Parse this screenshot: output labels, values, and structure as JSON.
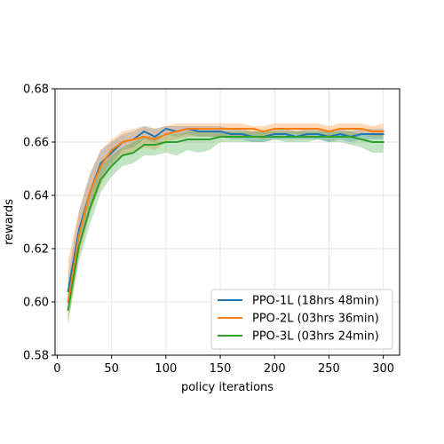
{
  "chart_data": {
    "type": "line",
    "title": "",
    "xlabel": "policy iterations",
    "ylabel": "rewards",
    "xlim": [
      -2,
      315
    ],
    "ylim": [
      0.58,
      0.68
    ],
    "xticks": [
      0,
      50,
      100,
      150,
      200,
      250,
      300
    ],
    "xtick_labels": [
      "0",
      "50",
      "100",
      "150",
      "200",
      "250",
      "300"
    ],
    "yticks": [
      0.58,
      0.6,
      0.62,
      0.64,
      0.66,
      0.68
    ],
    "ytick_labels": [
      "0.58",
      "0.60",
      "0.62",
      "0.64",
      "0.66",
      "0.68"
    ],
    "grid": true,
    "legend_position": "lower-right",
    "x": [
      10,
      20,
      30,
      40,
      50,
      60,
      70,
      80,
      90,
      100,
      110,
      120,
      130,
      140,
      150,
      160,
      170,
      180,
      190,
      200,
      210,
      220,
      230,
      240,
      250,
      260,
      270,
      280,
      290,
      300
    ],
    "series": [
      {
        "name": "PPO-1L (18hrs 48min)",
        "color": "#1f77b4",
        "values": [
          0.604,
          0.627,
          0.641,
          0.652,
          0.656,
          0.66,
          0.661,
          0.664,
          0.662,
          0.665,
          0.664,
          0.665,
          0.664,
          0.664,
          0.664,
          0.663,
          0.663,
          0.662,
          0.662,
          0.663,
          0.663,
          0.662,
          0.663,
          0.663,
          0.662,
          0.663,
          0.662,
          0.663,
          0.663,
          0.663
        ],
        "lower": [
          0.598,
          0.62,
          0.634,
          0.647,
          0.652,
          0.657,
          0.658,
          0.661,
          0.66,
          0.663,
          0.662,
          0.663,
          0.662,
          0.662,
          0.662,
          0.661,
          0.661,
          0.66,
          0.66,
          0.661,
          0.661,
          0.661,
          0.661,
          0.661,
          0.66,
          0.661,
          0.66,
          0.661,
          0.661,
          0.661
        ],
        "upper": [
          0.61,
          0.634,
          0.648,
          0.657,
          0.66,
          0.663,
          0.664,
          0.666,
          0.665,
          0.666,
          0.666,
          0.666,
          0.666,
          0.666,
          0.666,
          0.665,
          0.665,
          0.664,
          0.664,
          0.665,
          0.665,
          0.664,
          0.665,
          0.665,
          0.664,
          0.665,
          0.664,
          0.665,
          0.665,
          0.665
        ]
      },
      {
        "name": "PPO-2L (03hrs 36min)",
        "color": "#ff7f0e",
        "values": [
          0.6,
          0.625,
          0.641,
          0.651,
          0.657,
          0.66,
          0.661,
          0.662,
          0.661,
          0.663,
          0.664,
          0.665,
          0.665,
          0.665,
          0.665,
          0.665,
          0.665,
          0.665,
          0.664,
          0.665,
          0.665,
          0.665,
          0.665,
          0.665,
          0.664,
          0.665,
          0.665,
          0.665,
          0.664,
          0.664
        ],
        "lower": [
          0.592,
          0.617,
          0.633,
          0.644,
          0.651,
          0.655,
          0.656,
          0.658,
          0.657,
          0.66,
          0.661,
          0.662,
          0.662,
          0.662,
          0.662,
          0.662,
          0.662,
          0.662,
          0.661,
          0.663,
          0.663,
          0.663,
          0.662,
          0.663,
          0.662,
          0.663,
          0.662,
          0.663,
          0.662,
          0.662
        ],
        "upper": [
          0.616,
          0.634,
          0.648,
          0.657,
          0.661,
          0.664,
          0.665,
          0.666,
          0.665,
          0.666,
          0.667,
          0.667,
          0.667,
          0.667,
          0.667,
          0.667,
          0.667,
          0.666,
          0.666,
          0.667,
          0.667,
          0.667,
          0.667,
          0.667,
          0.666,
          0.667,
          0.667,
          0.667,
          0.666,
          0.667
        ]
      },
      {
        "name": "PPO-3L (03hrs 24min)",
        "color": "#2ca02c",
        "values": [
          0.597,
          0.621,
          0.635,
          0.646,
          0.651,
          0.655,
          0.656,
          0.659,
          0.659,
          0.66,
          0.66,
          0.661,
          0.661,
          0.661,
          0.662,
          0.662,
          0.662,
          0.662,
          0.662,
          0.662,
          0.662,
          0.662,
          0.662,
          0.662,
          0.662,
          0.662,
          0.662,
          0.661,
          0.66,
          0.66
        ],
        "lower": [
          0.592,
          0.615,
          0.629,
          0.641,
          0.647,
          0.651,
          0.652,
          0.655,
          0.655,
          0.656,
          0.655,
          0.657,
          0.656,
          0.657,
          0.66,
          0.66,
          0.66,
          0.66,
          0.66,
          0.661,
          0.66,
          0.66,
          0.66,
          0.661,
          0.66,
          0.66,
          0.659,
          0.658,
          0.656,
          0.656
        ],
        "upper": [
          0.603,
          0.627,
          0.641,
          0.651,
          0.655,
          0.658,
          0.66,
          0.662,
          0.662,
          0.663,
          0.663,
          0.664,
          0.664,
          0.664,
          0.664,
          0.664,
          0.664,
          0.664,
          0.664,
          0.664,
          0.664,
          0.664,
          0.664,
          0.664,
          0.664,
          0.664,
          0.664,
          0.663,
          0.663,
          0.663
        ]
      }
    ]
  }
}
